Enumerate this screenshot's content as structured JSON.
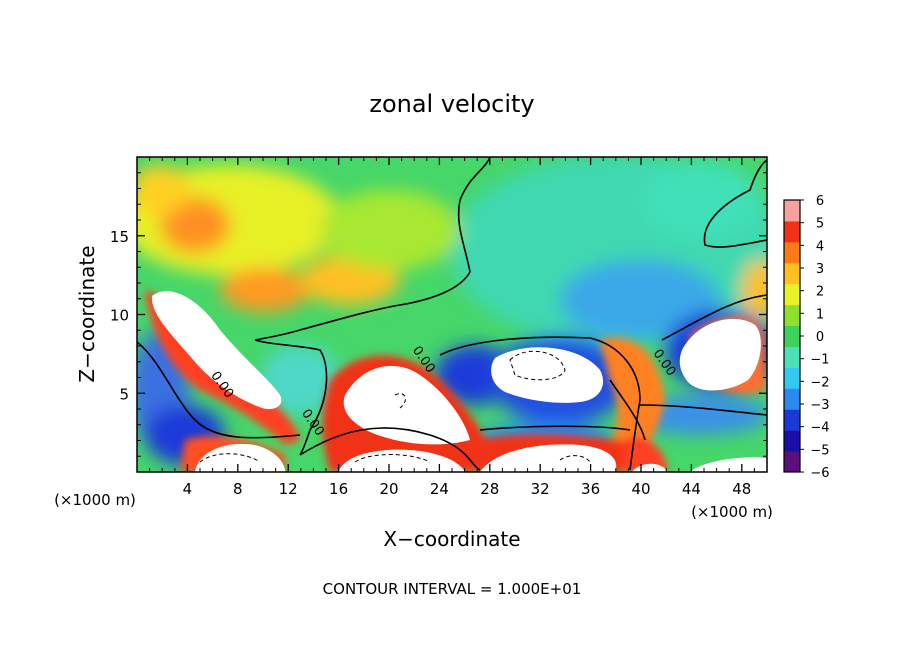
{
  "chart_data": {
    "type": "heatmap",
    "title": "zonal velocity",
    "xlabel": "X−coordinate",
    "ylabel": "Z−coordinate",
    "x_unit_left": "(×1000 m)",
    "x_unit_right": "(×1000 m)",
    "footer": "CONTOUR INTERVAL = 1.000E+01",
    "xlim": [
      0,
      50
    ],
    "ylim": [
      0,
      20
    ],
    "x_ticks": [
      4,
      8,
      12,
      16,
      20,
      24,
      28,
      32,
      36,
      40,
      44,
      48
    ],
    "y_ticks": [
      5,
      10,
      15
    ],
    "colorbar": {
      "range": [
        -6,
        6
      ],
      "ticks": [
        6,
        5,
        4,
        3,
        2,
        1,
        0,
        -1,
        -2,
        -3,
        -4,
        -5,
        -6
      ],
      "tick_labels": [
        "6",
        "5",
        "4",
        "3",
        "2",
        "1",
        "0",
        "−1",
        "−2",
        "−3",
        "−4",
        "−5",
        "−6"
      ],
      "colors": [
        "#5a0f7a",
        "#1a10a8",
        "#1a3ad8",
        "#2a8af0",
        "#33c8f0",
        "#4de0b8",
        "#3ed25a",
        "#8ee030",
        "#e8f028",
        "#ffc020",
        "#ff7a18",
        "#f23218",
        "#f8a0a0"
      ]
    },
    "contour_labels": [
      {
        "text": "0.00",
        "x": 6.5,
        "z": 5.4
      },
      {
        "text": "0.00",
        "x": 13.7,
        "z": 3.0
      },
      {
        "text": "0.00",
        "x": 22.5,
        "z": 7.0
      },
      {
        "text": "0.00",
        "x": 41.6,
        "z": 6.8
      }
    ],
    "saturated_regions_note_values": [
      "6",
      "−6"
    ]
  }
}
